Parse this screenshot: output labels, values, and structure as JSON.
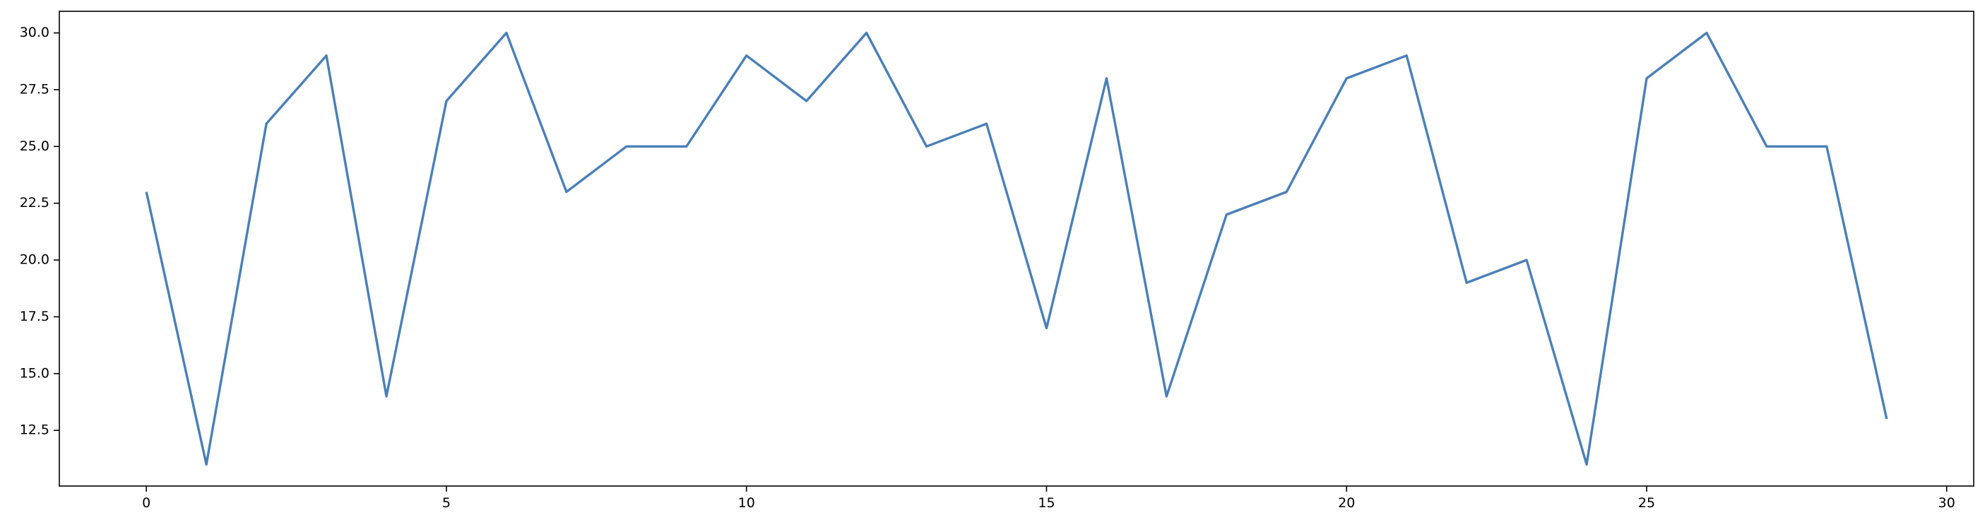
{
  "chart_data": {
    "type": "line",
    "title": "",
    "xlabel": "",
    "ylabel": "",
    "xlim": [
      -1.45,
      30.45
    ],
    "ylim": [
      10.05,
      30.95
    ],
    "x_ticks": [
      {
        "value": 0,
        "label": "0"
      },
      {
        "value": 5,
        "label": "5"
      },
      {
        "value": 10,
        "label": "10"
      },
      {
        "value": 15,
        "label": "15"
      },
      {
        "value": 20,
        "label": "20"
      },
      {
        "value": 25,
        "label": "25"
      },
      {
        "value": 30,
        "label": "30"
      }
    ],
    "y_ticks": [
      {
        "value": 12.5,
        "label": "12.5"
      },
      {
        "value": 15.0,
        "label": "15.0"
      },
      {
        "value": 17.5,
        "label": "17.5"
      },
      {
        "value": 20.0,
        "label": "20.0"
      },
      {
        "value": 22.5,
        "label": "22.5"
      },
      {
        "value": 25.0,
        "label": "25.0"
      },
      {
        "value": 27.5,
        "label": "27.5"
      },
      {
        "value": 30.0,
        "label": "30.0"
      }
    ],
    "grid": false,
    "legend": "none",
    "series": [
      {
        "color": "#4a7fb8",
        "x": [
          0,
          1,
          2,
          3,
          4,
          5,
          6,
          7,
          8,
          9,
          10,
          11,
          12,
          13,
          14,
          15,
          16,
          17,
          18,
          19,
          20,
          21,
          22,
          23,
          24,
          25,
          26,
          27,
          28,
          29
        ],
        "y": [
          23,
          11,
          26,
          29,
          14,
          27,
          30,
          23,
          25,
          25,
          29,
          27,
          30,
          25,
          26,
          17,
          28,
          14,
          22,
          23,
          28,
          29,
          19,
          20,
          11,
          28,
          30,
          25,
          25,
          13
        ]
      }
    ]
  }
}
